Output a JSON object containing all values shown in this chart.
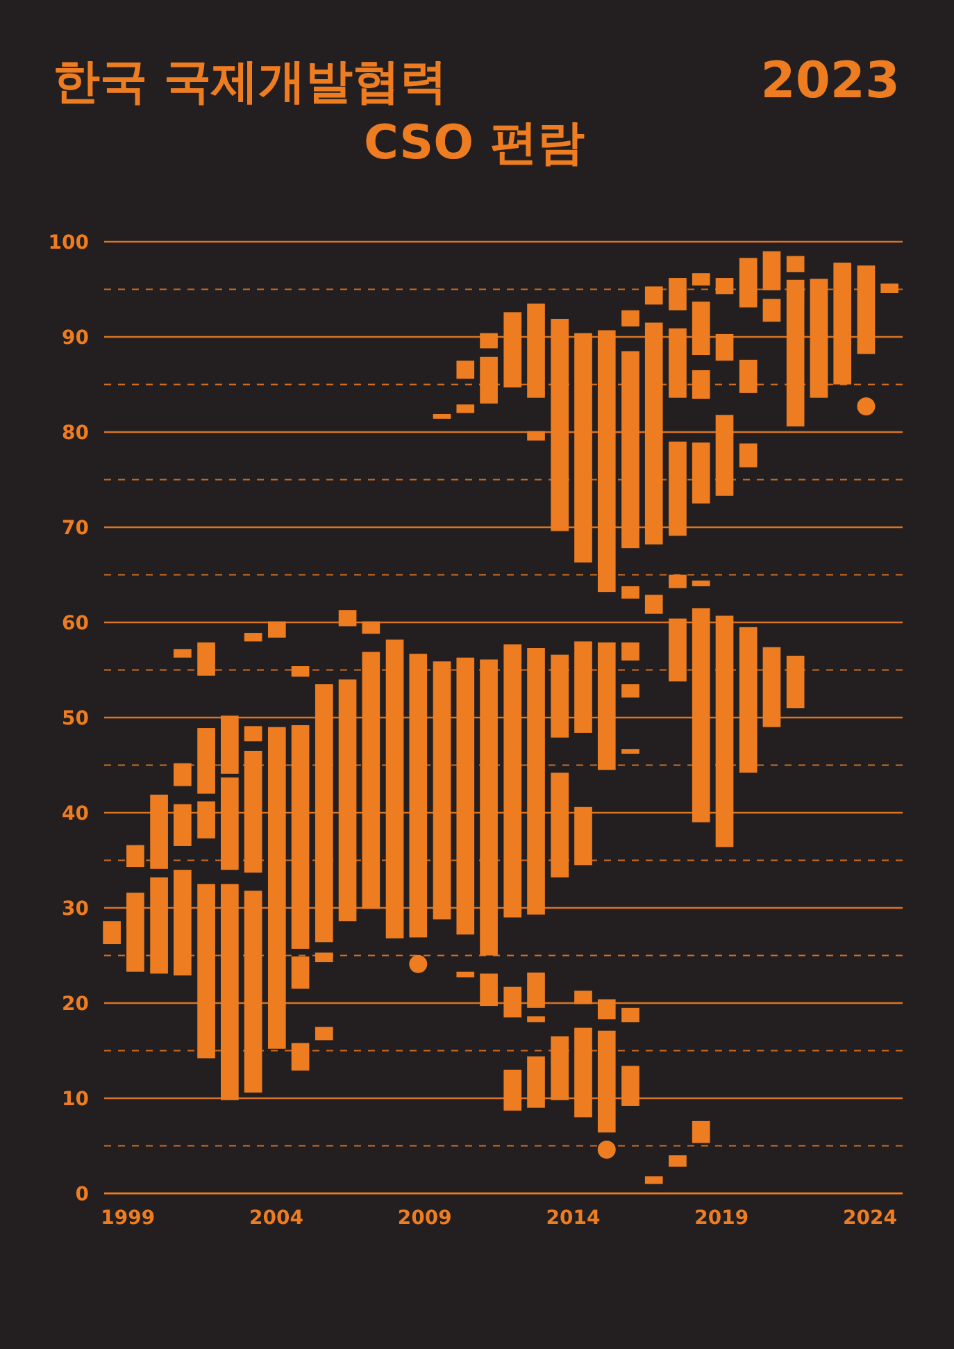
{
  "chart_data": {
    "type": "bar",
    "title": "한국 국제개발협력",
    "subtitle": "CSO 편람",
    "annotations": [
      "2023"
    ],
    "xlim": [
      1998.2,
      2025.1
    ],
    "xticks": [
      1999,
      2004,
      2009,
      2014,
      2019,
      2024
    ],
    "ylim": [
      0,
      100
    ],
    "yticks": [
      0,
      {
        "value": 5,
        "label": null
      },
      10,
      {
        "value": 15,
        "label": null
      },
      20,
      {
        "value": 25,
        "label": null
      },
      30,
      {
        "value": 35,
        "label": null
      },
      40,
      {
        "value": 45,
        "label": null
      },
      50,
      {
        "value": 55,
        "label": null
      },
      60,
      {
        "value": 65,
        "label": null
      },
      70,
      {
        "value": 75,
        "label": null
      },
      80,
      {
        "value": 85,
        "label": null
      },
      90,
      {
        "value": 95,
        "label": null
      },
      100
    ],
    "grid": "y",
    "series": [
      {
        "color": "#ee7d22",
        "x": [
          1998.46,
          1999.25,
          2000.05,
          2000.84,
          2001.64,
          2002.43,
          2003.22,
          2004.02,
          2004.81,
          2005.61,
          2006.4,
          2007.19,
          2007.99,
          2008.78,
          2009.58,
          2010.37,
          2011.16,
          2011.96,
          2012.75,
          2013.55,
          2014.34,
          2015.13,
          2015.93,
          2016.72,
          2017.52,
          2018.31,
          2019.1,
          2019.9,
          2020.69,
          2021.49,
          2022.28,
          2023.07,
          2023.87,
          2024.66
        ],
        "base": [
          26.2,
          34.3,
          34.1,
          56.3,
          54.4,
          44.1,
          58.0,
          58.4,
          54.3,
          26.4,
          59.6,
          58.8,
          26.8,
          26.9,
          81.4,
          85.6,
          88.8,
          84.7,
          83.6,
          69.6,
          66.3,
          63.2,
          91.1,
          93.4,
          92.8,
          95.4,
          94.5,
          93.1,
          94.9,
          96.8,
          83.6,
          85.0,
          88.2,
          94.6
        ],
        "values": [
          2.4,
          2.3,
          7.8,
          0.9,
          3.5,
          6.1,
          0.9,
          1.7,
          1.1,
          27.1,
          1.7,
          1.3,
          31.4,
          29.8,
          0.5,
          1.9,
          1.6,
          7.9,
          9.9,
          22.3,
          24.1,
          27.5,
          1.7,
          1.9,
          3.4,
          1.3,
          1.7,
          5.2,
          4.1,
          1.7,
          12.5,
          12.8,
          9.3,
          1.0
        ]
      },
      {
        "color": "#ee7d22",
        "x": [
          1999.25,
          2000.05,
          2000.84,
          2001.64,
          2002.43,
          2003.22,
          2004.02,
          2004.81,
          2005.61,
          2006.4,
          2007.19,
          2009.58,
          2010.37,
          2011.16,
          2011.96,
          2012.75,
          2013.55,
          2014.34,
          2015.13,
          2015.93,
          2016.72,
          2017.52,
          2018.31,
          2019.1,
          2019.9,
          2020.69,
          2021.49
        ],
        "base": [
          23.3,
          23.1,
          42.8,
          42.0,
          34.0,
          47.5,
          15.2,
          25.7,
          24.3,
          28.6,
          29.9,
          28.8,
          82.0,
          83.0,
          29.0,
          79.1,
          47.9,
          48.4,
          44.5,
          67.8,
          68.2,
          83.6,
          88.1,
          87.5,
          84.1,
          91.6,
          80.6
        ],
        "values": [
          8.3,
          10.1,
          2.4,
          6.9,
          9.7,
          1.6,
          33.8,
          23.5,
          1.0,
          25.4,
          27.0,
          27.1,
          0.9,
          4.9,
          28.7,
          1.0,
          8.7,
          9.6,
          13.4,
          20.7,
          23.3,
          7.3,
          5.6,
          2.8,
          3.5,
          2.4,
          15.4
        ]
      },
      {
        "color": "#ee7d22",
        "x": [
          2000.84,
          2001.64,
          2002.43,
          2003.22,
          2004.81,
          2005.61,
          2010.37,
          2011.16,
          2011.96,
          2012.75,
          2013.55,
          2014.34,
          2015.13,
          2015.93,
          2016.72,
          2017.52,
          2018.31,
          2019.1,
          2019.9,
          2020.69,
          2021.49
        ],
        "base": [
          36.5,
          37.3,
          9.8,
          33.7,
          21.5,
          16.1,
          27.2,
          25.0,
          18.5,
          29.3,
          33.2,
          34.5,
          18.3,
          62.5,
          60.9,
          69.1,
          83.5,
          73.3,
          76.3,
          49.0,
          51.0
        ],
        "values": [
          4.4,
          3.9,
          22.7,
          12.8,
          3.4,
          1.4,
          29.1,
          31.1,
          3.2,
          28.0,
          11.0,
          6.1,
          2.1,
          1.3,
          2.0,
          9.9,
          3.0,
          8.5,
          2.5,
          8.4,
          5.5
        ]
      },
      {
        "color": "#ee7d22",
        "x": [
          2000.84,
          2001.64,
          2003.22,
          2004.81,
          2010.37,
          2011.16,
          2011.96,
          2012.75,
          2013.55,
          2014.34,
          2015.13,
          2015.93,
          2016.72,
          2017.52,
          2018.31,
          2019.1,
          2019.9
        ],
        "base": [
          22.9,
          14.2,
          10.6,
          12.9,
          22.7,
          19.7,
          8.7,
          19.5,
          9.8,
          19.9,
          6.4,
          56.0,
          1.0,
          63.6,
          72.5,
          36.4,
          44.2
        ],
        "values": [
          11.1,
          18.3,
          21.2,
          2.9,
          0.6,
          3.4,
          4.3,
          3.7,
          6.7,
          1.4,
          10.7,
          1.9,
          0.8,
          1.4,
          6.4,
          24.3,
          15.3
        ]
      },
      {
        "color": "#ee7d22",
        "x": [
          2012.75,
          2014.34,
          2015.93,
          2017.52,
          2018.31
        ],
        "base": [
          18.0,
          8.0,
          52.1,
          53.8,
          63.8
        ],
        "values": [
          0.6,
          9.4,
          1.4,
          6.6,
          0.6
        ]
      },
      {
        "color": "#ee7d22",
        "x": [
          2012.75,
          2015.93,
          2017.52,
          2018.31
        ],
        "base": [
          9.0,
          46.2,
          2.8,
          39.0
        ],
        "values": [
          5.4,
          0.5,
          1.2,
          22.5
        ]
      },
      {
        "color": "#ee7d22",
        "x": [
          2015.93,
          2018.31
        ],
        "base": [
          18.0,
          5.3
        ],
        "values": [
          1.5,
          2.3
        ]
      },
      {
        "color": "#ee7d22",
        "x": [
          2015.93
        ],
        "base": [
          9.2
        ],
        "values": [
          4.2
        ]
      },
      {
        "type": "scatter",
        "color": "#ee7d22",
        "marker": "circle",
        "x": [
          2008.78,
          2015.13,
          2023.87
        ],
        "values": [
          24.1,
          4.6,
          82.7
        ]
      }
    ]
  }
}
